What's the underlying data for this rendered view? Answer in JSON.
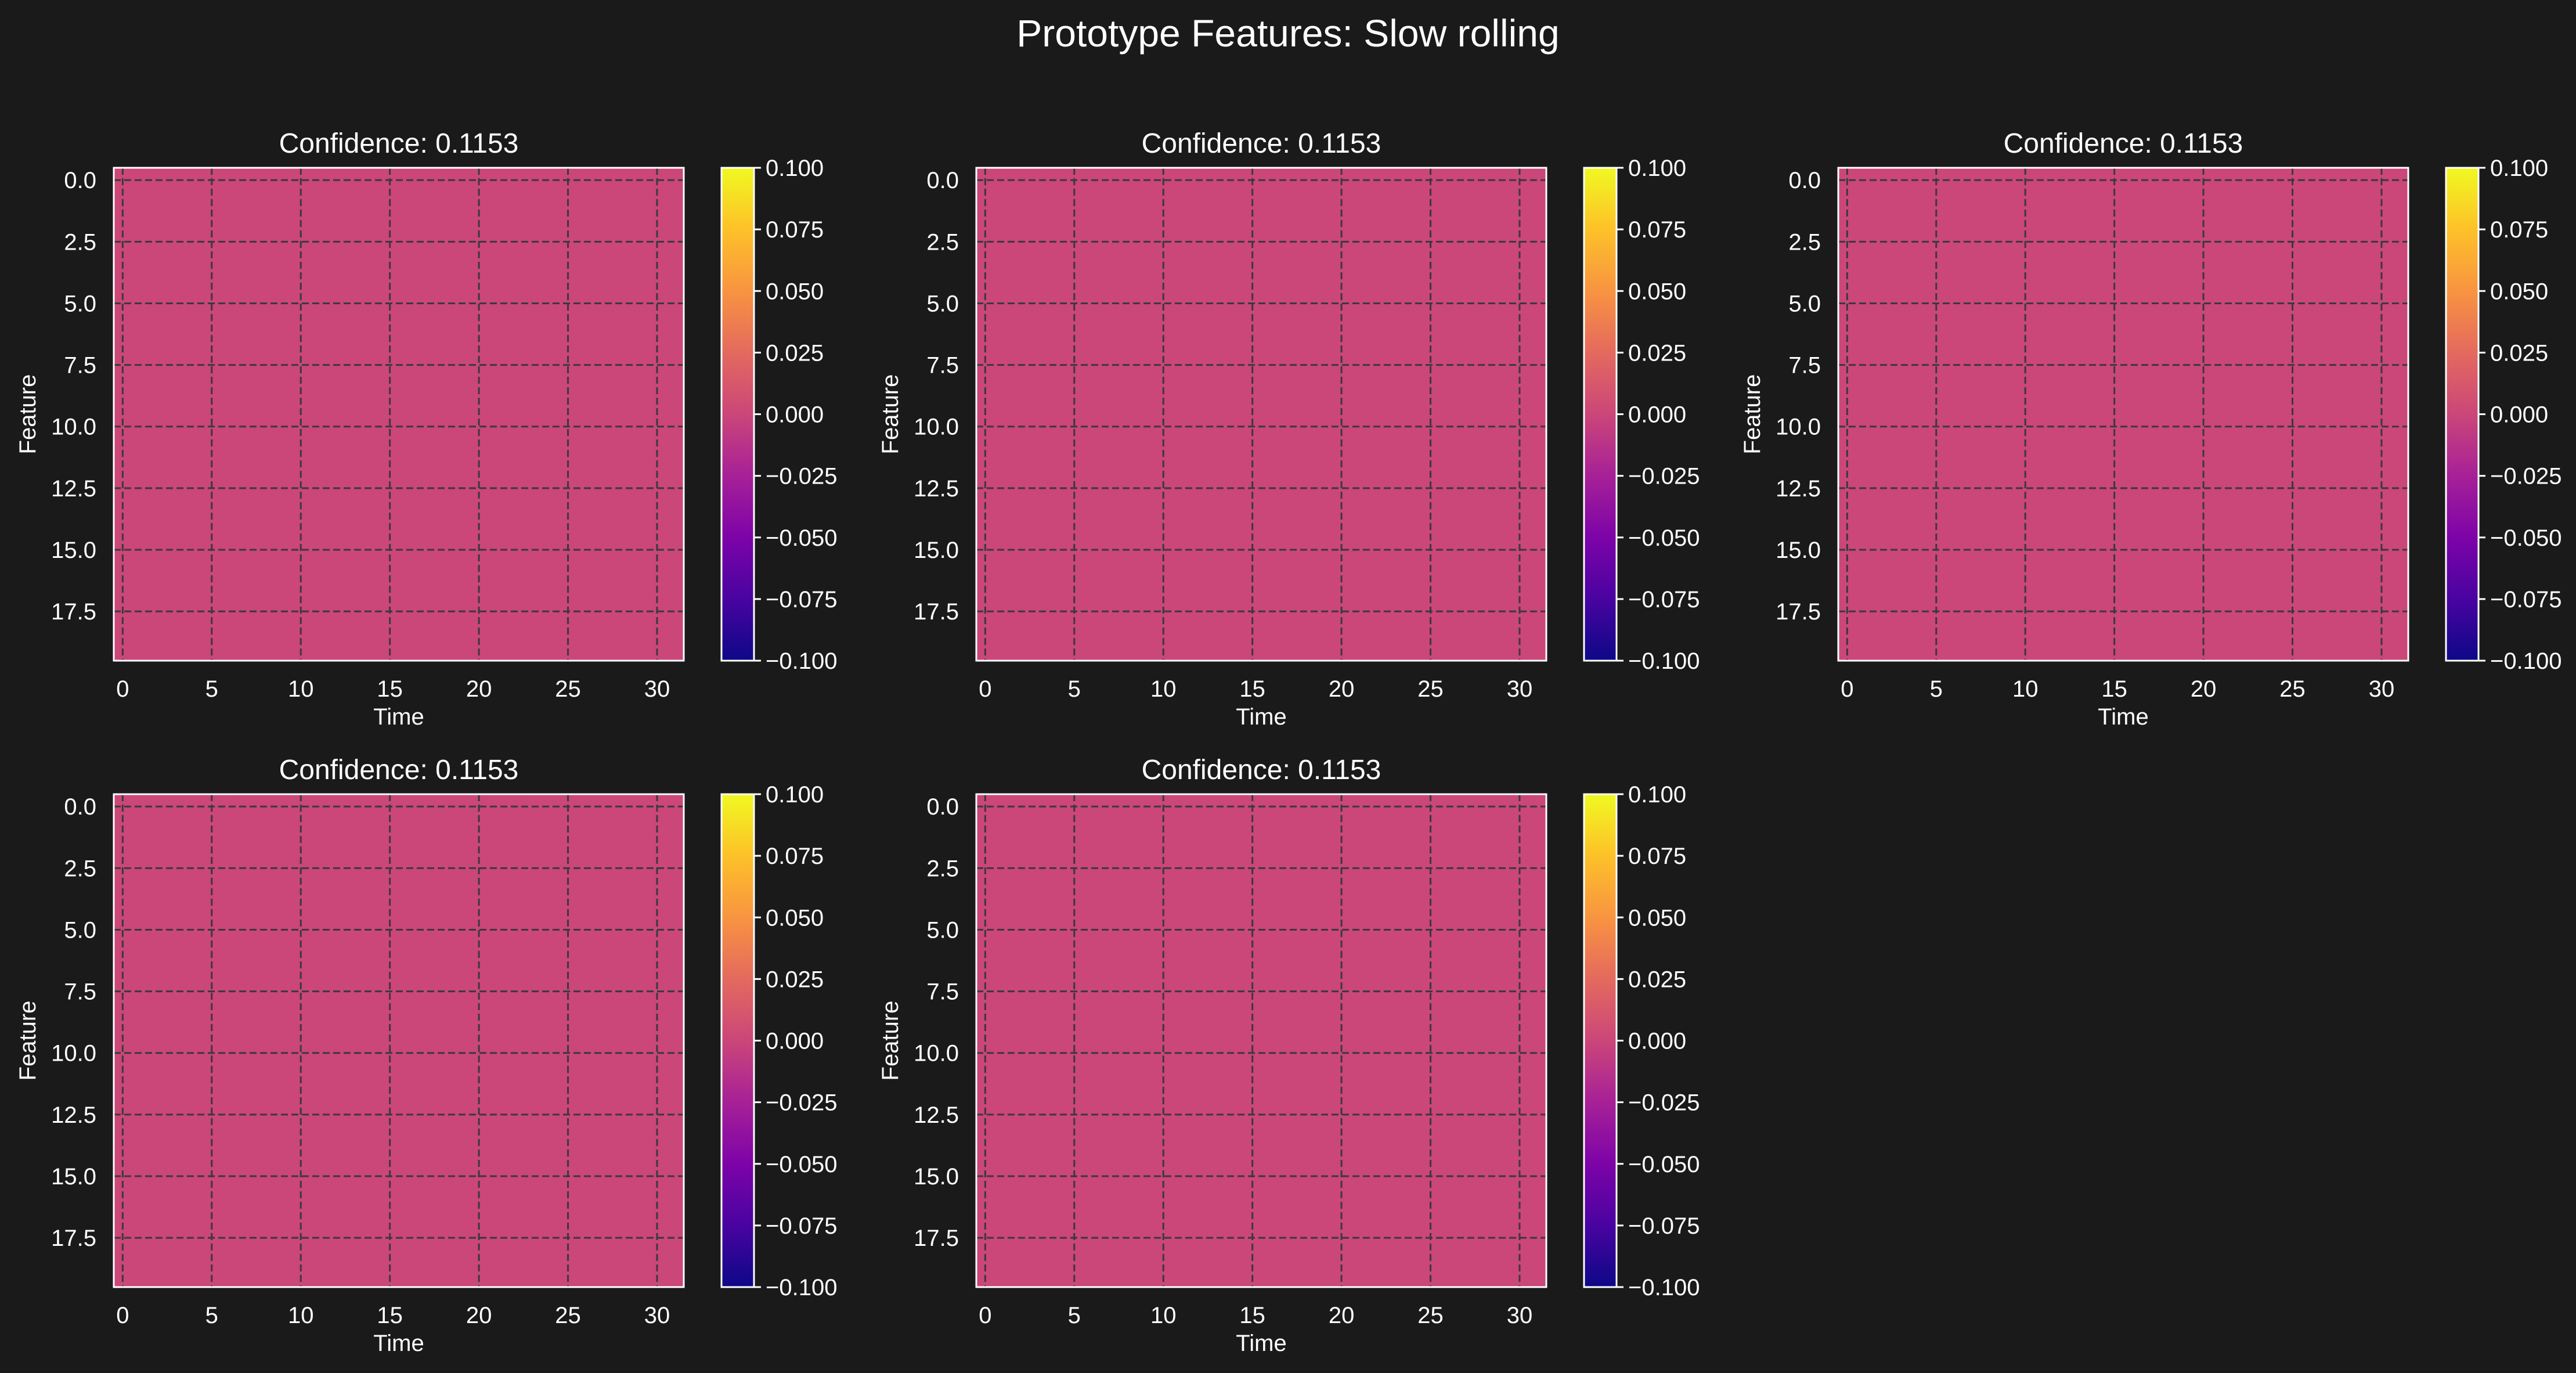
{
  "figure": {
    "title": "Prototype Features: Slow rolling",
    "background": "#1a1a1a"
  },
  "chart_data": [
    {
      "type": "heatmap",
      "title": "Confidence: 0.1153",
      "xlabel": "Time",
      "ylabel": "Feature",
      "x_range": [
        -0.5,
        31.5
      ],
      "y_range": [
        -0.5,
        19.5
      ],
      "x_ticks": [
        0,
        5,
        10,
        15,
        20,
        25,
        30
      ],
      "y_ticks": [
        0.0,
        2.5,
        5.0,
        7.5,
        10.0,
        12.5,
        15.0,
        17.5
      ],
      "y_inverted": true,
      "grid": true,
      "grid_style": "dashed",
      "value": 0.0,
      "colormap": "plasma",
      "colorbar": {
        "range": [
          -0.1,
          0.1
        ],
        "ticks": [
          "0.100",
          "0.075",
          "0.050",
          "0.025",
          "0.000",
          "−0.025",
          "−0.050",
          "−0.075",
          "−0.100"
        ]
      }
    },
    {
      "type": "heatmap",
      "title": "Confidence: 0.1153",
      "xlabel": "Time",
      "ylabel": "Feature",
      "x_range": [
        -0.5,
        31.5
      ],
      "y_range": [
        -0.5,
        19.5
      ],
      "x_ticks": [
        0,
        5,
        10,
        15,
        20,
        25,
        30
      ],
      "y_ticks": [
        0.0,
        2.5,
        5.0,
        7.5,
        10.0,
        12.5,
        15.0,
        17.5
      ],
      "y_inverted": true,
      "grid": true,
      "grid_style": "dashed",
      "value": 0.0,
      "colormap": "plasma",
      "colorbar": {
        "range": [
          -0.1,
          0.1
        ],
        "ticks": [
          "0.100",
          "0.075",
          "0.050",
          "0.025",
          "0.000",
          "−0.025",
          "−0.050",
          "−0.075",
          "−0.100"
        ]
      }
    },
    {
      "type": "heatmap",
      "title": "Confidence: 0.1153",
      "xlabel": "Time",
      "ylabel": "Feature",
      "x_range": [
        -0.5,
        31.5
      ],
      "y_range": [
        -0.5,
        19.5
      ],
      "x_ticks": [
        0,
        5,
        10,
        15,
        20,
        25,
        30
      ],
      "y_ticks": [
        0.0,
        2.5,
        5.0,
        7.5,
        10.0,
        12.5,
        15.0,
        17.5
      ],
      "y_inverted": true,
      "grid": true,
      "grid_style": "dashed",
      "value": 0.0,
      "colormap": "plasma",
      "colorbar": {
        "range": [
          -0.1,
          0.1
        ],
        "ticks": [
          "0.100",
          "0.075",
          "0.050",
          "0.025",
          "0.000",
          "−0.025",
          "−0.050",
          "−0.075",
          "−0.100"
        ]
      }
    },
    {
      "type": "heatmap",
      "title": "Confidence: 0.1153",
      "xlabel": "Time",
      "ylabel": "Feature",
      "x_range": [
        -0.5,
        31.5
      ],
      "y_range": [
        -0.5,
        19.5
      ],
      "x_ticks": [
        0,
        5,
        10,
        15,
        20,
        25,
        30
      ],
      "y_ticks": [
        0.0,
        2.5,
        5.0,
        7.5,
        10.0,
        12.5,
        15.0,
        17.5
      ],
      "y_inverted": true,
      "grid": true,
      "grid_style": "dashed",
      "value": 0.0,
      "colormap": "plasma",
      "colorbar": {
        "range": [
          -0.1,
          0.1
        ],
        "ticks": [
          "0.100",
          "0.075",
          "0.050",
          "0.025",
          "0.000",
          "−0.025",
          "−0.050",
          "−0.075",
          "−0.100"
        ]
      }
    },
    {
      "type": "heatmap",
      "title": "Confidence: 0.1153",
      "xlabel": "Time",
      "ylabel": "Feature",
      "x_range": [
        -0.5,
        31.5
      ],
      "y_range": [
        -0.5,
        19.5
      ],
      "x_ticks": [
        0,
        5,
        10,
        15,
        20,
        25,
        30
      ],
      "y_ticks": [
        0.0,
        2.5,
        5.0,
        7.5,
        10.0,
        12.5,
        15.0,
        17.5
      ],
      "y_inverted": true,
      "grid": true,
      "grid_style": "dashed",
      "value": 0.0,
      "colormap": "plasma",
      "colorbar": {
        "range": [
          -0.1,
          0.1
        ],
        "ticks": [
          "0.100",
          "0.075",
          "0.050",
          "0.025",
          "0.000",
          "−0.025",
          "−0.050",
          "−0.075",
          "−0.100"
        ]
      }
    }
  ]
}
